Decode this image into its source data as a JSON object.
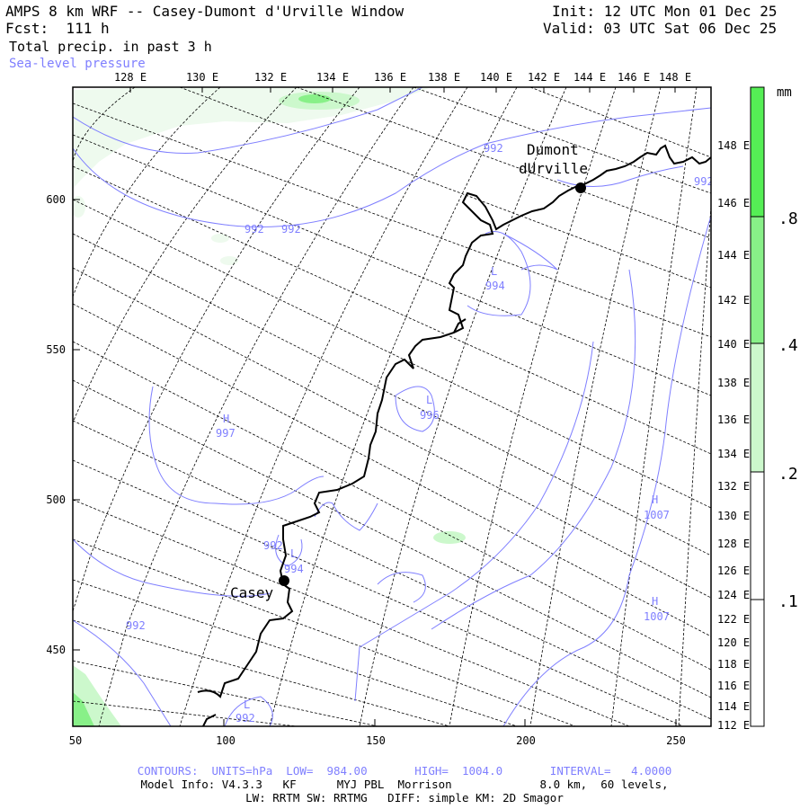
{
  "header": {
    "title": "AMPS 8 km WRF -- Casey-Dumont d'Urville Window",
    "forecast": "Fcst:  111 h",
    "field1": "Total precip. in past 3 h",
    "field2": "Sea-level pressure",
    "init": "Init: 12 UTC Mon 01 Dec 25",
    "valid": "Valid: 03 UTC Sat 06 Dec 25"
  },
  "top_lon_labels": [
    "128 E",
    "130 E",
    "132 E",
    "134 E",
    "136 E",
    "138 E",
    "140 E",
    "142 E",
    "144 E",
    "146 E",
    "148 E"
  ],
  "right_lon_labels": [
    "148 E",
    "146 E",
    "144 E",
    "142 E",
    "140 E",
    "138 E",
    "136 E",
    "134 E",
    "132 E",
    "130 E",
    "128 E",
    "126 E",
    "124 E",
    "122 E",
    "120 E",
    "118 E",
    "116 E",
    "114 E",
    "112 E"
  ],
  "x_ticks": [
    "50",
    "100",
    "150",
    "200",
    "250"
  ],
  "y_ticks": [
    "600",
    "550",
    "500",
    "450"
  ],
  "colorbar": {
    "unit": "mm",
    "labels": [
      ".8",
      ".4",
      ".2",
      ".1"
    ],
    "colors": [
      "#55ee55",
      "#88f088",
      "#ccf8cc",
      "#ffffff"
    ]
  },
  "stations": [
    {
      "name_line1": "Dumont",
      "name_line2": "dUrville"
    },
    {
      "name_line1": "Casey",
      "name_line2": ""
    }
  ],
  "pressure_labels": [
    {
      "kind": "",
      "value": "992"
    },
    {
      "kind": "",
      "value": "992"
    },
    {
      "kind": "",
      "value": "992"
    },
    {
      "kind": "",
      "value": "992"
    },
    {
      "kind": "L",
      "value": "994"
    },
    {
      "kind": "H",
      "value": "997"
    },
    {
      "kind": "L",
      "value": "996"
    },
    {
      "kind": "H",
      "value": "1007"
    },
    {
      "kind": "L",
      "value": "994"
    },
    {
      "kind": "H",
      "value": "1007"
    },
    {
      "kind": "",
      "value": "992"
    },
    {
      "kind": "L",
      "value": "992"
    },
    {
      "kind": "",
      "value": "992"
    }
  ],
  "footer": {
    "contours": "CONTOURS:  UNITS=hPa  LOW=  984.00       HIGH=  1004.0       INTERVAL=   4.0000",
    "model": "Model Info: V4.3.3   KF      MYJ PBL  Morrison             8.0 km,  60 levels,",
    "physics": "LW: RRTM SW: RRTMG   DIFF: simple KM: 2D Smagor"
  },
  "colors": {
    "contour": "#7f7fff",
    "grid": "#000000",
    "coast": "#000000"
  }
}
